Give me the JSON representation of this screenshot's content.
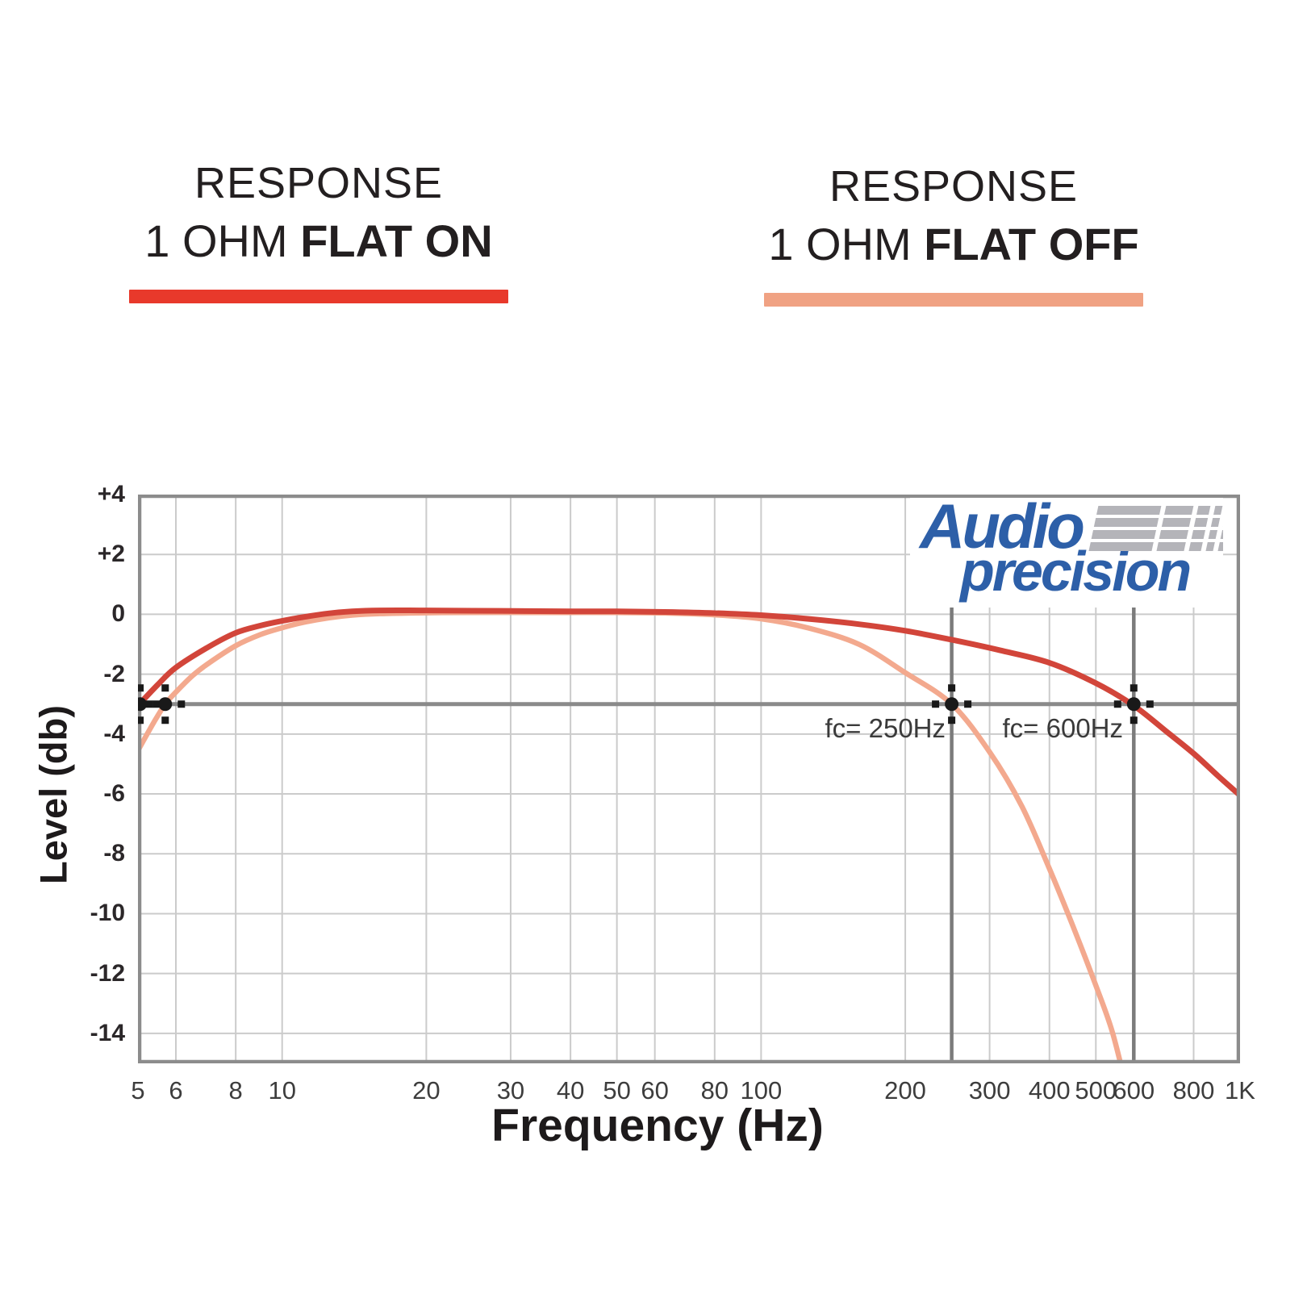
{
  "legend_on": {
    "line1": "RESPONSE",
    "line2_regular": "1 OHM ",
    "line2_bold": "FLAT ON",
    "bar_color": "#e8392b"
  },
  "legend_off": {
    "line1": "RESPONSE",
    "line2_regular": "1 OHM ",
    "line2_bold": "FLAT OFF",
    "bar_color": "#f0a283"
  },
  "logo": {
    "line1": "Audio",
    "line2": "precision",
    "text_color": "#2d5fa8",
    "bars_color": "#b4b4b9"
  },
  "annotations": {
    "fc_250": "fc= 250Hz",
    "fc_600": "fc= 600Hz"
  },
  "chart_data": {
    "type": "line",
    "title": "",
    "xlabel": "Frequency (Hz)",
    "ylabel": "Level (db)",
    "x_scale": "log",
    "x_range": [
      5,
      1000
    ],
    "y_range": [
      4,
      -15
    ],
    "grid": true,
    "x_ticks": [
      {
        "f": 5,
        "label": "5"
      },
      {
        "f": 6,
        "label": "6"
      },
      {
        "f": 8,
        "label": "8"
      },
      {
        "f": 10,
        "label": "10"
      },
      {
        "f": 20,
        "label": "20"
      },
      {
        "f": 30,
        "label": "30"
      },
      {
        "f": 40,
        "label": "40"
      },
      {
        "f": 50,
        "label": "50"
      },
      {
        "f": 60,
        "label": "60"
      },
      {
        "f": 80,
        "label": "80"
      },
      {
        "f": 100,
        "label": "100"
      },
      {
        "f": 200,
        "label": "200"
      },
      {
        "f": 300,
        "label": "300"
      },
      {
        "f": 400,
        "label": "400"
      },
      {
        "f": 500,
        "label": "500"
      },
      {
        "f": 600,
        "label": "600"
      },
      {
        "f": 800,
        "label": "800"
      },
      {
        "f": 1000,
        "label": "1K"
      }
    ],
    "y_ticks": [
      {
        "v": 4,
        "label": "+4"
      },
      {
        "v": 2,
        "label": "+2"
      },
      {
        "v": 0,
        "label": "0"
      },
      {
        "v": -2,
        "label": "-2"
      },
      {
        "v": -4,
        "label": "-4"
      },
      {
        "v": -6,
        "label": "-6"
      },
      {
        "v": -8,
        "label": "-8"
      },
      {
        "v": -10,
        "label": "-10"
      },
      {
        "v": -12,
        "label": "-12"
      },
      {
        "v": -14,
        "label": "-14"
      }
    ],
    "reference_lines": {
      "horizontal_db": -3,
      "vertical_hz": [
        250,
        600
      ]
    },
    "cutoff_markers_hz_db": [
      [
        5.05,
        -3
      ],
      [
        5.7,
        -3
      ],
      [
        250,
        -3
      ],
      [
        600,
        -3
      ]
    ],
    "series": [
      {
        "name": "1 OHM FLAT OFF",
        "color": "#f3a98e",
        "width": 6.5,
        "points": [
          [
            5,
            -4.55
          ],
          [
            5.4,
            -3.6
          ],
          [
            5.7,
            -3.0
          ],
          [
            6,
            -2.6
          ],
          [
            6.5,
            -2.05
          ],
          [
            7,
            -1.65
          ],
          [
            8,
            -1.05
          ],
          [
            9,
            -0.68
          ],
          [
            10,
            -0.45
          ],
          [
            11,
            -0.28
          ],
          [
            12.5,
            -0.12
          ],
          [
            14,
            -0.03
          ],
          [
            16,
            0.02
          ],
          [
            20,
            0.05
          ],
          [
            25,
            0.06
          ],
          [
            32,
            0.06
          ],
          [
            40,
            0.06
          ],
          [
            50,
            0.06
          ],
          [
            63,
            0.04
          ],
          [
            80,
            -0.02
          ],
          [
            100,
            -0.15
          ],
          [
            125,
            -0.45
          ],
          [
            160,
            -1.0
          ],
          [
            200,
            -1.95
          ],
          [
            250,
            -3.0
          ],
          [
            300,
            -4.6
          ],
          [
            350,
            -6.4
          ],
          [
            400,
            -8.5
          ],
          [
            450,
            -10.5
          ],
          [
            500,
            -12.4
          ],
          [
            540,
            -13.9
          ],
          [
            575,
            -15.6
          ]
        ]
      },
      {
        "name": "1 OHM FLAT ON",
        "color": "#d2453a",
        "width": 7,
        "points": [
          [
            5,
            -3.05
          ],
          [
            5.5,
            -2.35
          ],
          [
            6,
            -1.78
          ],
          [
            7,
            -1.1
          ],
          [
            8,
            -0.62
          ],
          [
            9,
            -0.38
          ],
          [
            10,
            -0.22
          ],
          [
            11,
            -0.1
          ],
          [
            12.5,
            0.03
          ],
          [
            14,
            0.1
          ],
          [
            16,
            0.13
          ],
          [
            20,
            0.13
          ],
          [
            25,
            0.12
          ],
          [
            32,
            0.11
          ],
          [
            40,
            0.1
          ],
          [
            50,
            0.1
          ],
          [
            63,
            0.08
          ],
          [
            80,
            0.04
          ],
          [
            100,
            -0.03
          ],
          [
            125,
            -0.15
          ],
          [
            160,
            -0.33
          ],
          [
            200,
            -0.55
          ],
          [
            250,
            -0.85
          ],
          [
            315,
            -1.2
          ],
          [
            400,
            -1.62
          ],
          [
            500,
            -2.3
          ],
          [
            600,
            -3.05
          ],
          [
            700,
            -3.9
          ],
          [
            800,
            -4.65
          ],
          [
            900,
            -5.4
          ],
          [
            1000,
            -6.05
          ]
        ]
      }
    ],
    "colors": {
      "grid": "#cbcbcb",
      "border": "#8c8c8c",
      "ref_h": "#8a8a8a",
      "ref_v": "#7b7b7b",
      "marker": "#191919"
    }
  }
}
